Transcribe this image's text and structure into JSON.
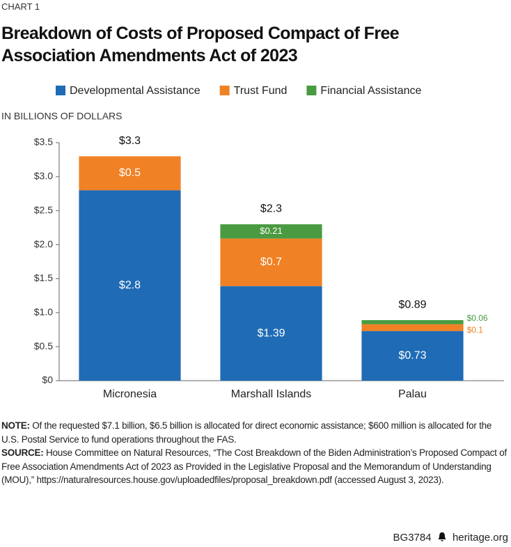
{
  "kicker": "CHART 1",
  "chart_data": {
    "type": "stacked-bar",
    "title": "Breakdown of Costs of Proposed Compact of Free Association Amendments Act of 2023",
    "y_label": "IN BILLIONS OF DOLLARS",
    "categories": [
      "Micronesia",
      "Marshall Islands",
      "Palau"
    ],
    "series": [
      {
        "name": "Developmental Assistance",
        "color": "#1f6bb5",
        "values": [
          2.8,
          1.39,
          0.73
        ],
        "value_labels": [
          "$2.8",
          "$1.39",
          "$0.73"
        ]
      },
      {
        "name": "Trust Fund",
        "color": "#f08125",
        "values": [
          0.5,
          0.7,
          0.1
        ],
        "value_labels": [
          "$0.5",
          "$0.7",
          "$0.1"
        ]
      },
      {
        "name": "Financial Assistance",
        "color": "#4a9a41",
        "values": [
          null,
          0.21,
          0.06
        ],
        "value_labels": [
          null,
          "$0.21",
          "$0.06"
        ]
      }
    ],
    "totals": [
      3.3,
      2.3,
      0.89
    ],
    "total_labels": [
      "$3.3",
      "$2.3",
      "$0.89"
    ],
    "ylim": [
      0,
      3.5
    ],
    "yticks": [
      {
        "value": 0,
        "label": "$0"
      },
      {
        "value": 0.5,
        "label": "$0.5"
      },
      {
        "value": 1,
        "label": "$1.0"
      },
      {
        "value": 1.5,
        "label": "$1.5"
      },
      {
        "value": 2,
        "label": "$2.0"
      },
      {
        "value": 2.5,
        "label": "$2.5"
      },
      {
        "value": 3,
        "label": "$3.0"
      },
      {
        "value": 3.5,
        "label": "$3.5"
      }
    ]
  },
  "note_label": "NOTE:",
  "note": "Of the requested $7.1 billion, $6.5 billion is allocated for direct economic assistance; $600 million is allocated for the U.S. Postal Service to fund operations throughout the FAS.",
  "source_label": "SOURCE:",
  "source": "House Committee on Natural Resources, “The Cost Breakdown of the Biden Administration’s Proposed Compact of Free Association Amendments Act of 2023 as Provided in the Legislative Proposal and the Memorandum of Understanding (MOU),” https://naturalresources.house.gov/uploadedfiles/proposal_breakdown.pdf (accessed August 3, 2023).",
  "footer": {
    "code": "BG3784",
    "site": "heritage.org"
  }
}
